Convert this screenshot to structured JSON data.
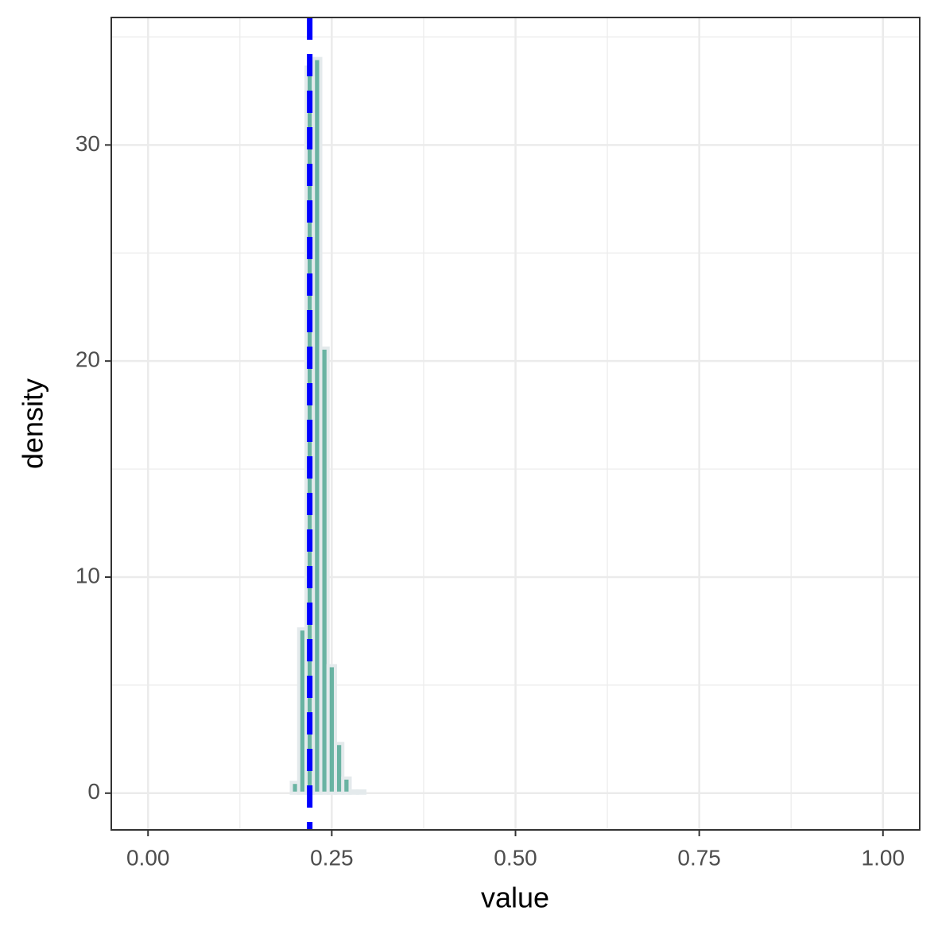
{
  "chart_data": {
    "type": "histogram",
    "x_label": "value",
    "y_label": "density",
    "bins": [
      0.195,
      0.205,
      0.215,
      0.225,
      0.235,
      0.245,
      0.255,
      0.265,
      0.275,
      0.285,
      0.295
    ],
    "values": [
      0.5,
      7.6,
      33.6,
      34.0,
      20.6,
      5.9,
      2.3,
      0.7,
      0.1,
      0.1
    ],
    "color": "#69b3a2",
    "edge_color": "#e4eaec",
    "vline": 0.22,
    "vline_color": "#0000ff",
    "xlim": [
      -0.05,
      1.05
    ],
    "ylim": [
      -1.7,
      35.9
    ],
    "xticks": [
      {
        "value": 0,
        "label": "0.00"
      },
      {
        "value": 0.25,
        "label": "0.25"
      },
      {
        "value": 0.5,
        "label": "0.50"
      },
      {
        "value": 0.75,
        "label": "0.75"
      },
      {
        "value": 1,
        "label": "1.00"
      }
    ],
    "yticks": [
      0,
      10,
      20,
      30
    ],
    "x_minor_grid": [
      0.125,
      0.375,
      0.625,
      0.875
    ],
    "y_minor_grid": [
      5,
      15,
      25,
      35
    ],
    "grid": true
  }
}
